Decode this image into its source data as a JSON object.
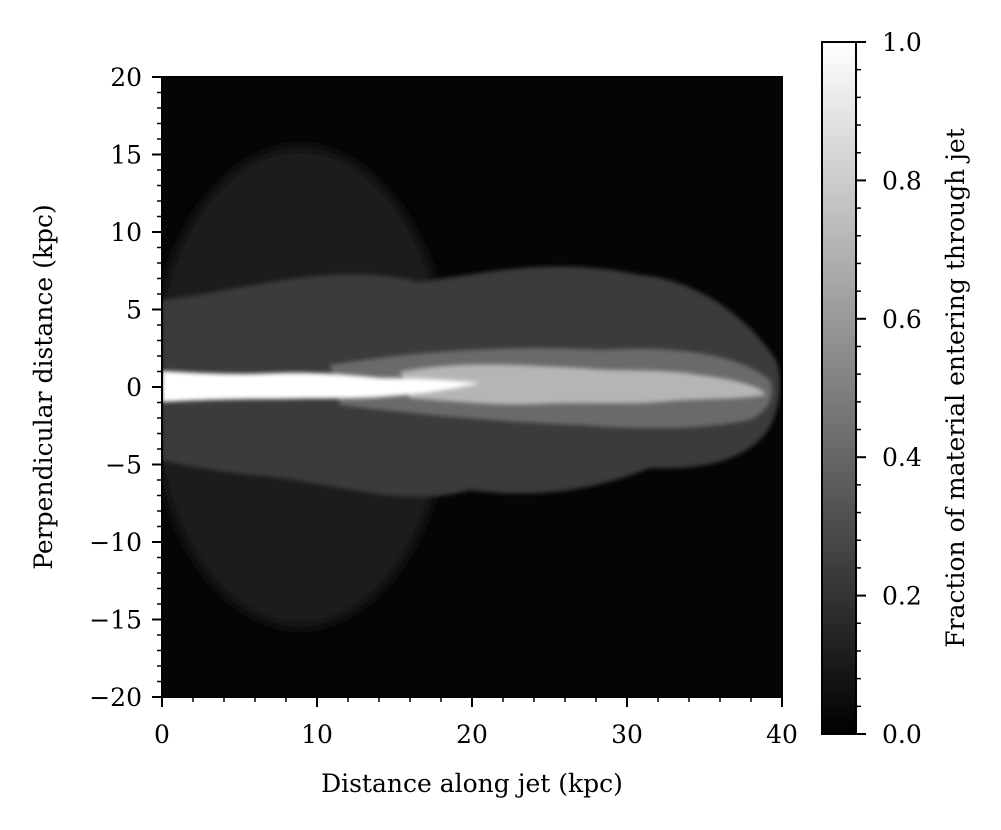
{
  "chart_data": {
    "type": "heatmap",
    "title": "",
    "xlabel": "Distance along jet (kpc)",
    "ylabel": "Perpendicular distance (kpc)",
    "xlim": [
      0,
      40
    ],
    "ylim": [
      -20,
      20
    ],
    "x_ticks": [
      "0",
      "10",
      "20",
      "30",
      "40"
    ],
    "y_ticks": [
      "20",
      "15",
      "10",
      "5",
      "0",
      "−5",
      "−10",
      "−15",
      "−20"
    ],
    "colormap": "gray",
    "colorbar": {
      "label": "Fraction of material entering through jet",
      "range": [
        0.0,
        1.0
      ],
      "ticks": [
        "0.0",
        "0.2",
        "0.4",
        "0.6",
        "0.8",
        "1.0"
      ]
    },
    "structure": {
      "jet_core": {
        "x_from": 0,
        "x_to": 12,
        "half_width": 1.0,
        "value": 1.0
      },
      "cocoon": {
        "x_from": 0,
        "x_to": 40,
        "max_half_width": 7.5,
        "head_x": 40,
        "typical_value": 0.35
      },
      "background_value": 0.03
    }
  }
}
